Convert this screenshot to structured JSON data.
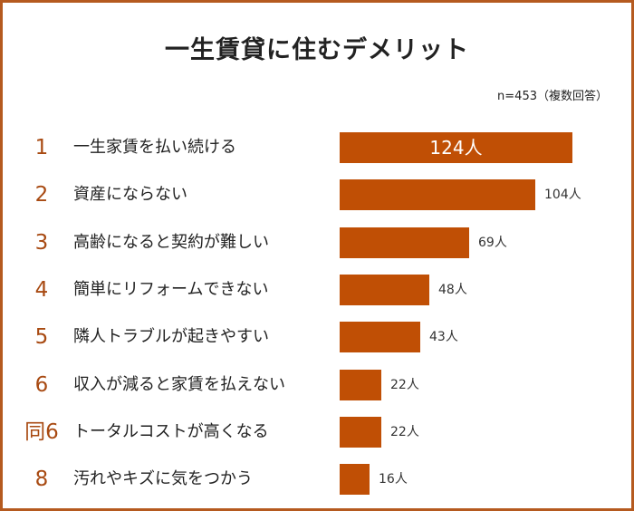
{
  "title": "一生賃貸に住むデメリット",
  "note": "n=453（複数回答）",
  "chart_data": {
    "type": "bar",
    "orientation": "horizontal",
    "title": "一生賃貸に住むデメリット",
    "ranks": [
      "1",
      "2",
      "3",
      "4",
      "5",
      "6",
      "同6",
      "8"
    ],
    "categories": [
      "一生家賃を払い続ける",
      "資産にならない",
      "高齢になると契約が難しい",
      "簡単にリフォームできない",
      "隣人トラブルが起きやすい",
      "収入が減ると家賃を払えない",
      "トータルコストが高くなる",
      "汚れやキズに気をつかう"
    ],
    "values": [
      124,
      104,
      69,
      48,
      43,
      22,
      22,
      16
    ],
    "value_labels": [
      "124人",
      "104人",
      "69人",
      "48人",
      "43人",
      "22人",
      "22人",
      "16人"
    ],
    "unit": "人",
    "xlim": [
      0,
      124
    ],
    "bar_color": "#c04f05",
    "rank_color": "#a84a12",
    "frame_color": "#b55a1f"
  }
}
